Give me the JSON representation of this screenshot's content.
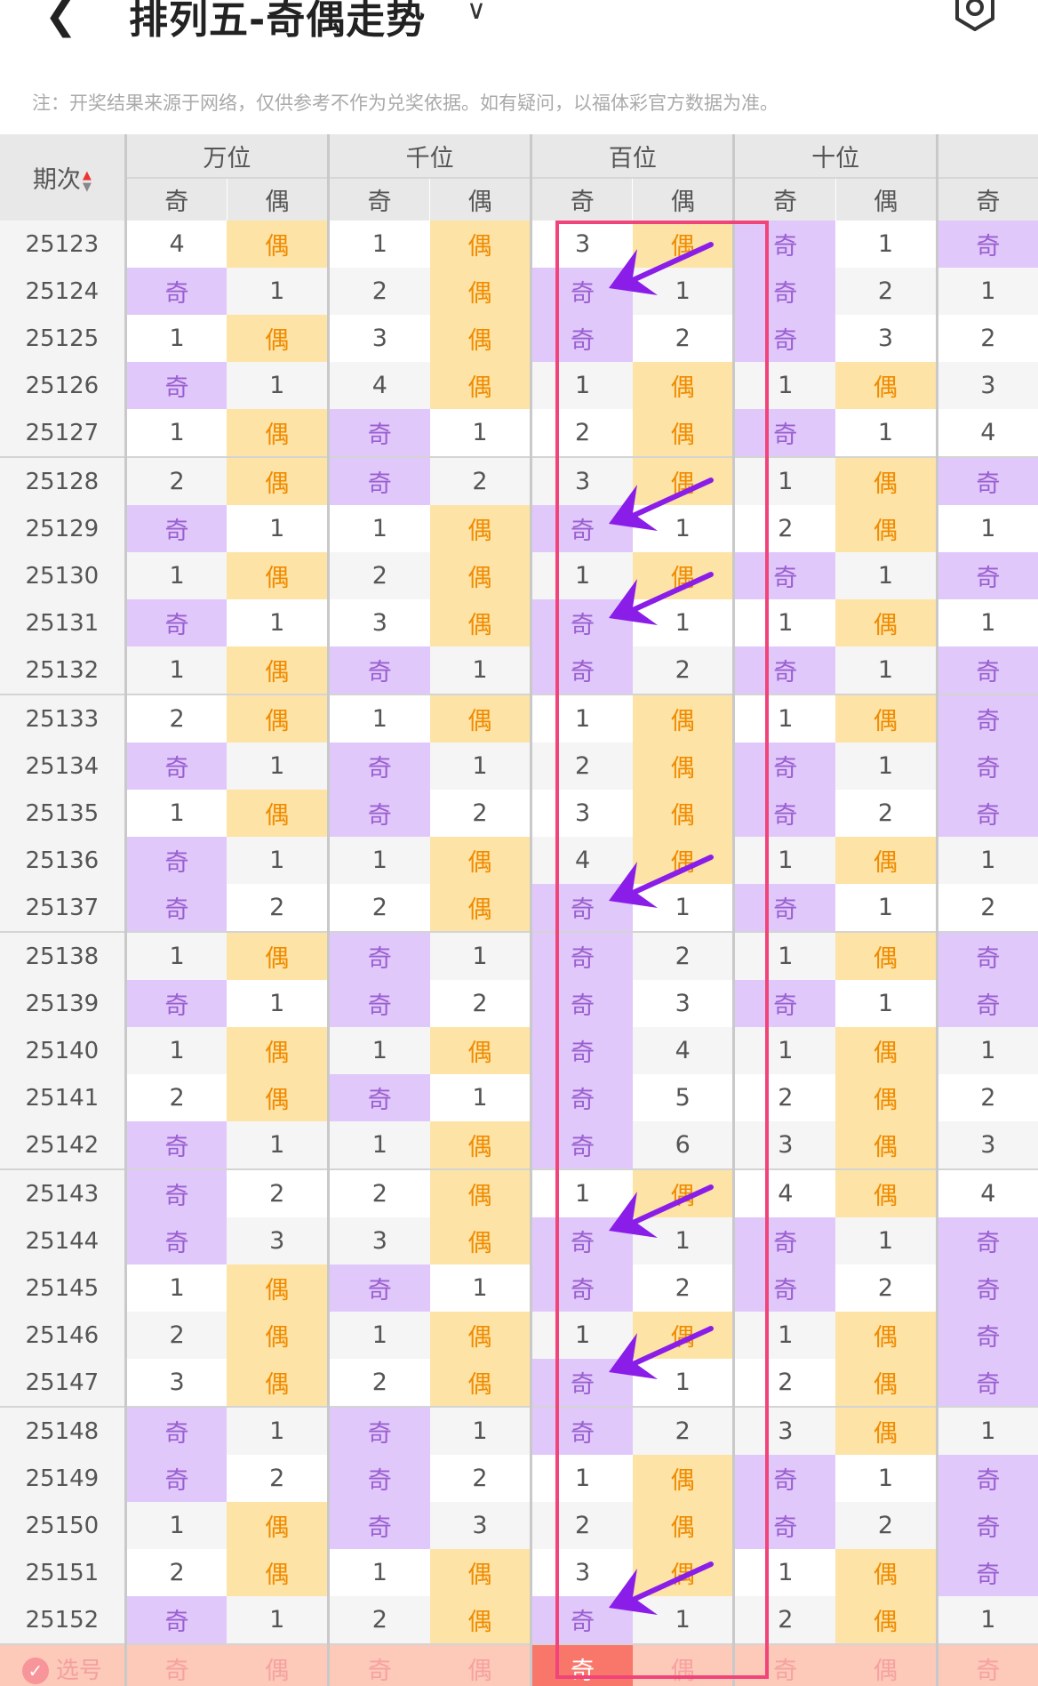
{
  "header": {
    "back_icon": "chevron-left-icon",
    "title": "排列五-奇偶走势",
    "dropdown_icon": "chevron-down-icon",
    "settings_icon": "settings-hexagon-icon"
  },
  "note": "注：开奖结果来源于网络，仅供参考不作为兑奖依据。如有疑问，以福体彩官方数据为准。",
  "table": {
    "issue_header": "期次",
    "sort_icon": "sort-updown-icon",
    "groups": [
      "万位",
      "千位",
      "百位",
      "十位",
      ""
    ],
    "sub_headers": [
      "奇",
      "偶",
      "奇",
      "偶",
      "奇",
      "偶",
      "奇",
      "偶",
      "奇"
    ],
    "rows": [
      [
        "25123",
        "4",
        "偶",
        "1",
        "偶",
        "3",
        "偶",
        "奇",
        "1",
        "奇"
      ],
      [
        "25124",
        "奇",
        "1",
        "2",
        "偶",
        "奇",
        "1",
        "奇",
        "2",
        "1"
      ],
      [
        "25125",
        "1",
        "偶",
        "3",
        "偶",
        "奇",
        "2",
        "奇",
        "3",
        "2"
      ],
      [
        "25126",
        "奇",
        "1",
        "4",
        "偶",
        "1",
        "偶",
        "1",
        "偶",
        "3"
      ],
      [
        "25127",
        "1",
        "偶",
        "奇",
        "1",
        "2",
        "偶",
        "奇",
        "1",
        "4"
      ],
      [
        "25128",
        "2",
        "偶",
        "奇",
        "2",
        "3",
        "偶",
        "1",
        "偶",
        "奇"
      ],
      [
        "25129",
        "奇",
        "1",
        "1",
        "偶",
        "奇",
        "1",
        "2",
        "偶",
        "1"
      ],
      [
        "25130",
        "1",
        "偶",
        "2",
        "偶",
        "1",
        "偶",
        "奇",
        "1",
        "奇"
      ],
      [
        "25131",
        "奇",
        "1",
        "3",
        "偶",
        "奇",
        "1",
        "1",
        "偶",
        "1"
      ],
      [
        "25132",
        "1",
        "偶",
        "奇",
        "1",
        "奇",
        "2",
        "奇",
        "1",
        "奇"
      ],
      [
        "25133",
        "2",
        "偶",
        "1",
        "偶",
        "1",
        "偶",
        "1",
        "偶",
        "奇"
      ],
      [
        "25134",
        "奇",
        "1",
        "奇",
        "1",
        "2",
        "偶",
        "奇",
        "1",
        "奇"
      ],
      [
        "25135",
        "1",
        "偶",
        "奇",
        "2",
        "3",
        "偶",
        "奇",
        "2",
        "奇"
      ],
      [
        "25136",
        "奇",
        "1",
        "1",
        "偶",
        "4",
        "偶",
        "1",
        "偶",
        "1"
      ],
      [
        "25137",
        "奇",
        "2",
        "2",
        "偶",
        "奇",
        "1",
        "奇",
        "1",
        "2"
      ],
      [
        "25138",
        "1",
        "偶",
        "奇",
        "1",
        "奇",
        "2",
        "1",
        "偶",
        "奇"
      ],
      [
        "25139",
        "奇",
        "1",
        "奇",
        "2",
        "奇",
        "3",
        "奇",
        "1",
        "奇"
      ],
      [
        "25140",
        "1",
        "偶",
        "1",
        "偶",
        "奇",
        "4",
        "1",
        "偶",
        "1"
      ],
      [
        "25141",
        "2",
        "偶",
        "奇",
        "1",
        "奇",
        "5",
        "2",
        "偶",
        "2"
      ],
      [
        "25142",
        "奇",
        "1",
        "1",
        "偶",
        "奇",
        "6",
        "3",
        "偶",
        "3"
      ],
      [
        "25143",
        "奇",
        "2",
        "2",
        "偶",
        "1",
        "偶",
        "4",
        "偶",
        "4"
      ],
      [
        "25144",
        "奇",
        "3",
        "3",
        "偶",
        "奇",
        "1",
        "奇",
        "1",
        "奇"
      ],
      [
        "25145",
        "1",
        "偶",
        "奇",
        "1",
        "奇",
        "2",
        "奇",
        "2",
        "奇"
      ],
      [
        "25146",
        "2",
        "偶",
        "1",
        "偶",
        "1",
        "偶",
        "1",
        "偶",
        "奇"
      ],
      [
        "25147",
        "3",
        "偶",
        "2",
        "偶",
        "奇",
        "1",
        "2",
        "偶",
        "奇"
      ],
      [
        "25148",
        "奇",
        "1",
        "奇",
        "1",
        "奇",
        "2",
        "3",
        "偶",
        "1"
      ],
      [
        "25149",
        "奇",
        "2",
        "奇",
        "2",
        "1",
        "偶",
        "奇",
        "1",
        "奇"
      ],
      [
        "25150",
        "1",
        "偶",
        "奇",
        "3",
        "2",
        "偶",
        "奇",
        "2",
        "奇"
      ],
      [
        "25151",
        "2",
        "偶",
        "1",
        "偶",
        "3",
        "偶",
        "1",
        "偶",
        "奇"
      ],
      [
        "25152",
        "奇",
        "1",
        "2",
        "偶",
        "奇",
        "1",
        "2",
        "偶",
        "1"
      ]
    ],
    "pick_row": {
      "label": "选号",
      "check_icon": "check-circle-icon",
      "cells": [
        "奇",
        "偶",
        "奇",
        "偶",
        "奇",
        "偶",
        "奇",
        "偶",
        "奇"
      ],
      "selected_index": 4
    },
    "arrow_from_rows": [
      "25123",
      "25128",
      "25130",
      "25136",
      "25143",
      "25146",
      "25151"
    ]
  },
  "colors": {
    "odd_bg": "#e1c8fb",
    "odd_text": "#9a5fd0",
    "even_bg": "#fde4a6",
    "even_text": "#f08a00",
    "highlight_border": "#f0447a",
    "arrow": "#8a1ee8",
    "pick_bg": "#fdc9b9",
    "pick_selected": "#f8766a"
  }
}
